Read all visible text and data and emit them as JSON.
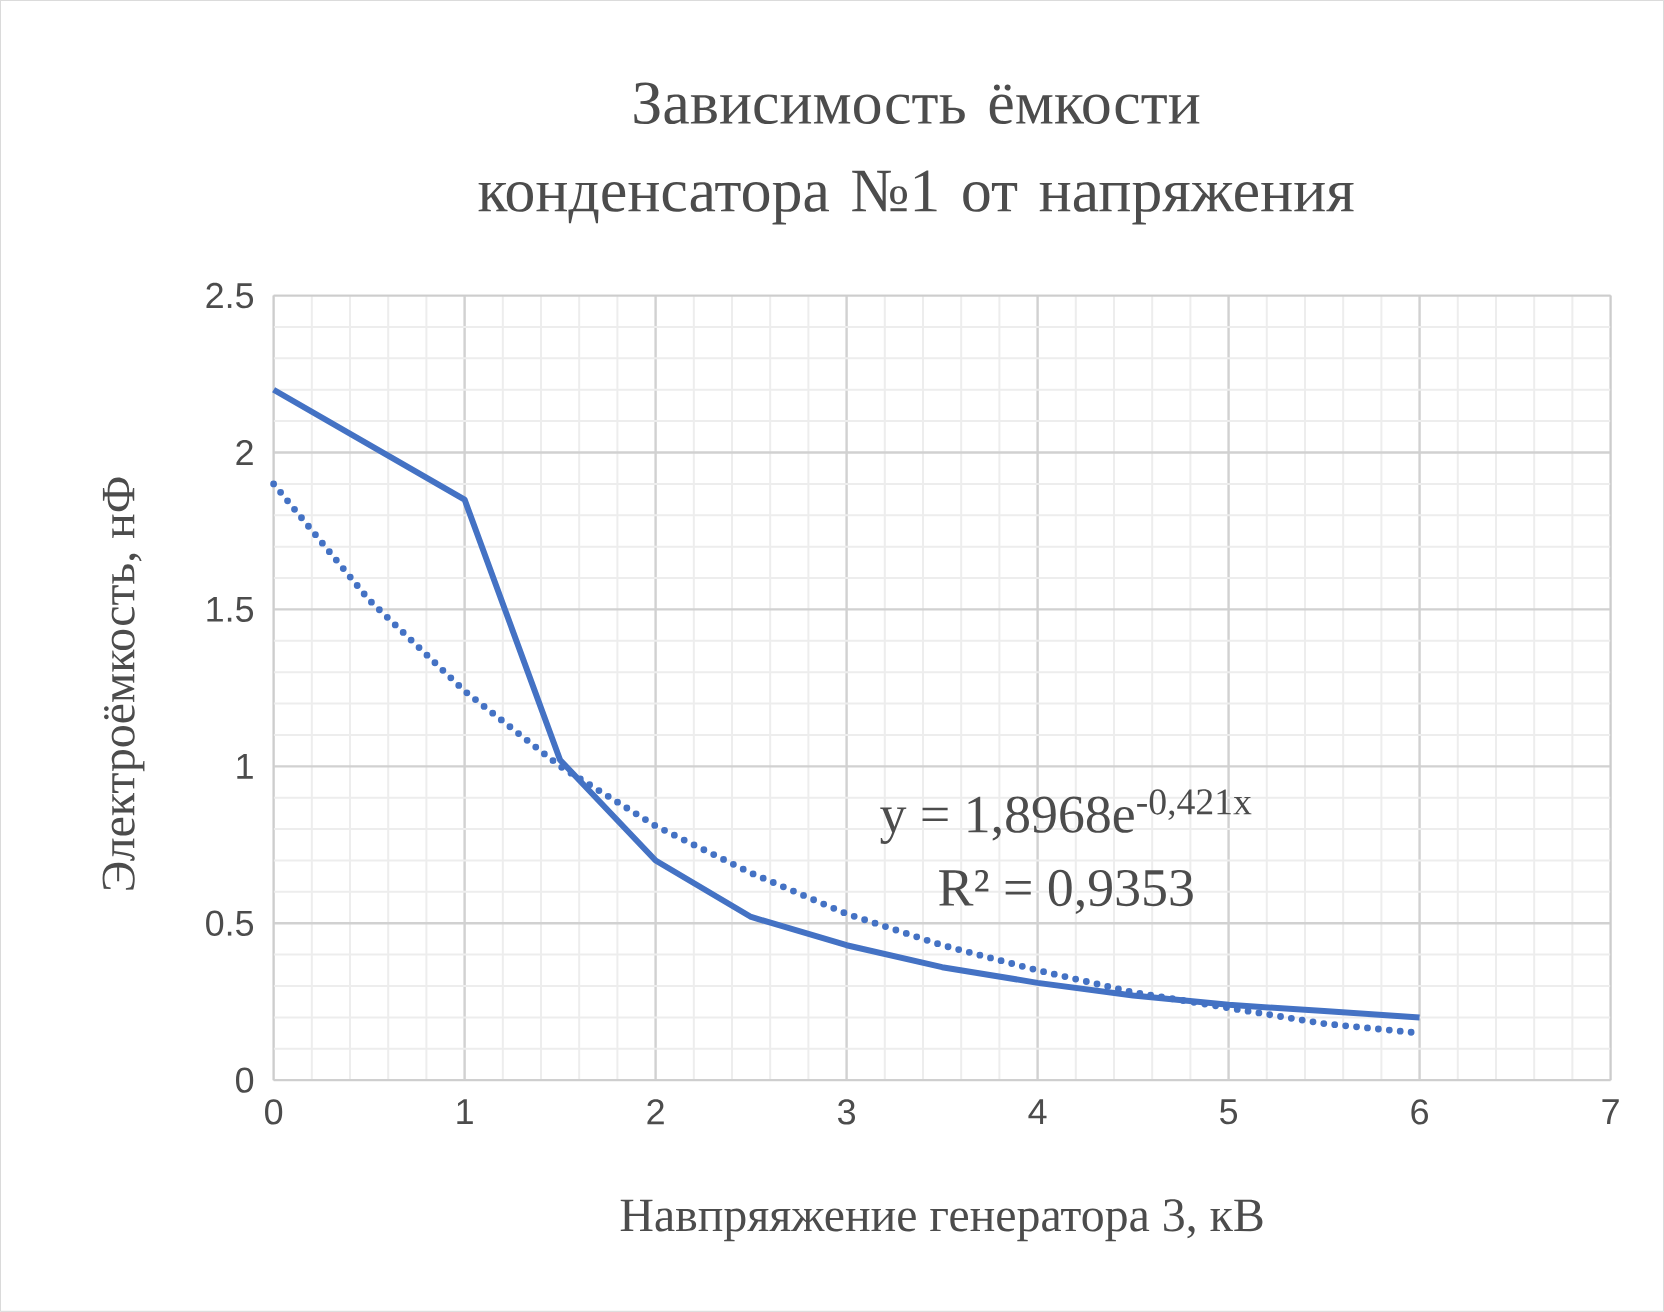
{
  "chart_data": {
    "type": "line",
    "title": "Зависимость ёмкости конденсатора №1 от напряжения",
    "xlabel": "Навпряяжение генератора 3, кВ",
    "ylabel": "Электроёмкость, нФ",
    "xlim": [
      0,
      7
    ],
    "xticks": [
      0,
      1,
      2,
      3,
      4,
      5,
      6,
      7
    ],
    "ylim": [
      0,
      2.5
    ],
    "yticks": [
      0,
      0.5,
      1,
      1.5,
      2,
      2.5
    ],
    "grid": true,
    "series": [
      {
        "color": "#4472c4",
        "line_style": "solid",
        "x": [
          0,
          1,
          1.5,
          2,
          2.5,
          3,
          3.5,
          4,
          4.5,
          5,
          5.5,
          6
        ],
        "values": [
          2.2,
          1.85,
          1.02,
          0.7,
          0.52,
          0.43,
          0.36,
          0.31,
          0.27,
          0.24,
          0.22,
          0.2
        ]
      },
      {
        "color": "#4472c4",
        "line_style": "dotted",
        "x": [
          0,
          0.5,
          1,
          1.5,
          2,
          2.5,
          3,
          3.5,
          4,
          4.5,
          5,
          5.5,
          6
        ],
        "values": [
          1.9,
          1.53,
          1.24,
          1.0,
          0.81,
          0.66,
          0.53,
          0.43,
          0.35,
          0.28,
          0.23,
          0.18,
          0.15
        ]
      }
    ],
    "annotations": [
      "y = 1,8968e$^{-0,421x}$",
      "R² = 0,9353"
    ]
  }
}
